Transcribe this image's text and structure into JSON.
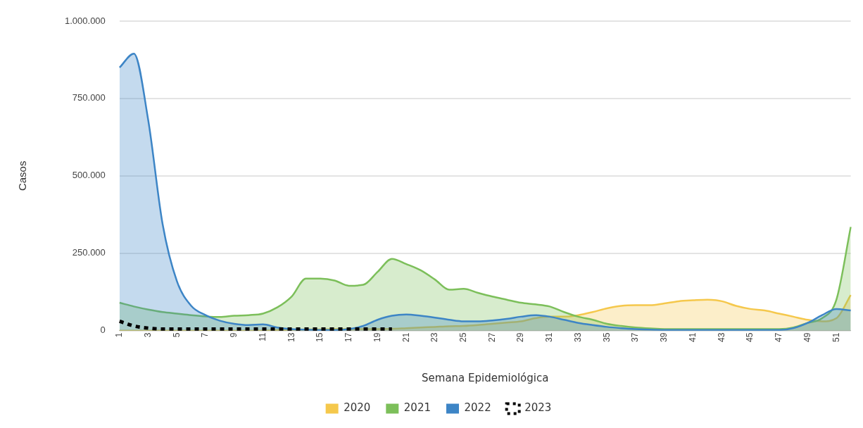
{
  "chart_data": {
    "type": "area",
    "xlabel": "Semana Epidemiológica",
    "ylabel": "Casos",
    "categories": [
      "1",
      null,
      "3",
      null,
      "5",
      null,
      "7",
      null,
      "9",
      null,
      "11",
      null,
      "13",
      null,
      "15",
      null,
      "17",
      null,
      "19",
      null,
      "21",
      null,
      "23",
      null,
      "25",
      null,
      "27",
      null,
      "29",
      null,
      "31",
      null,
      "33",
      null,
      "35",
      null,
      "37",
      null,
      "39",
      null,
      "41",
      null,
      "43",
      null,
      "45",
      null,
      "47",
      null,
      "49",
      null,
      "51",
      null
    ],
    "ylim": [
      0,
      1000000
    ],
    "yticks": [
      0,
      {
        "value": 250000,
        "label": "250.000"
      },
      {
        "value": 500000,
        "label": "500.000"
      },
      {
        "value": 750000,
        "label": "750.000"
      },
      {
        "value": 1000000,
        "label": "1.000.000"
      }
    ],
    "grid": "y",
    "legend": "bottom",
    "marker": "none",
    "series": [
      {
        "name": "2020",
        "color": "#f5c84c",
        "values": [
          0,
          0,
          0,
          0,
          0,
          0,
          0,
          0,
          0,
          0,
          0,
          2000,
          3000,
          4000,
          4000,
          5000,
          5000,
          5000,
          5000,
          6000,
          8000,
          10000,
          12000,
          14000,
          15000,
          18000,
          22000,
          26000,
          30000,
          40000,
          45000,
          45000,
          50000,
          60000,
          72000,
          80000,
          82000,
          82000,
          88000,
          95000,
          98000,
          100000,
          95000,
          80000,
          70000,
          65000,
          55000,
          45000,
          35000,
          30000,
          40000,
          115000
        ]
      },
      {
        "name": "2021",
        "color": "#7cbf5a",
        "values": [
          90000,
          78000,
          68000,
          60000,
          55000,
          50000,
          46000,
          44000,
          48000,
          50000,
          55000,
          75000,
          110000,
          168000,
          168000,
          162000,
          145000,
          148000,
          190000,
          232000,
          215000,
          195000,
          165000,
          132000,
          135000,
          122000,
          110000,
          100000,
          90000,
          85000,
          78000,
          60000,
          45000,
          35000,
          22000,
          15000,
          10000,
          7000,
          5000,
          5000,
          5000,
          5000,
          5000,
          5000,
          5000,
          5000,
          5000,
          10000,
          25000,
          40000,
          100000,
          335000
        ]
      },
      {
        "name": "2022",
        "color": "#3d85c6",
        "values": [
          850000,
          895000,
          680000,
          345000,
          160000,
          80000,
          50000,
          32000,
          22000,
          18000,
          20000,
          10000,
          5000,
          3000,
          2000,
          2000,
          5000,
          15000,
          35000,
          48000,
          52000,
          48000,
          42000,
          35000,
          30000,
          30000,
          33000,
          38000,
          45000,
          50000,
          45000,
          35000,
          25000,
          18000,
          12000,
          8000,
          5000,
          3000,
          2000,
          2000,
          2000,
          2000,
          2000,
          2000,
          2000,
          2000,
          2000,
          8000,
          25000,
          50000,
          70000,
          65000
        ]
      },
      {
        "name": "2023",
        "type": "line",
        "line_style": "dashed",
        "color": "#000000",
        "values": [
          30000,
          15000,
          8000,
          5000,
          5000,
          5000,
          5000,
          5000,
          5000,
          5000,
          5000,
          5000,
          5000,
          5000,
          5000,
          5000,
          5000,
          5000,
          5000,
          5000,
          null,
          null,
          null,
          null,
          null,
          null,
          null,
          null,
          null,
          null,
          null,
          null,
          null,
          null,
          null,
          null,
          null,
          null,
          null,
          null,
          null,
          null,
          null,
          null,
          null,
          null,
          null,
          null,
          null,
          null,
          null,
          null
        ]
      }
    ]
  }
}
